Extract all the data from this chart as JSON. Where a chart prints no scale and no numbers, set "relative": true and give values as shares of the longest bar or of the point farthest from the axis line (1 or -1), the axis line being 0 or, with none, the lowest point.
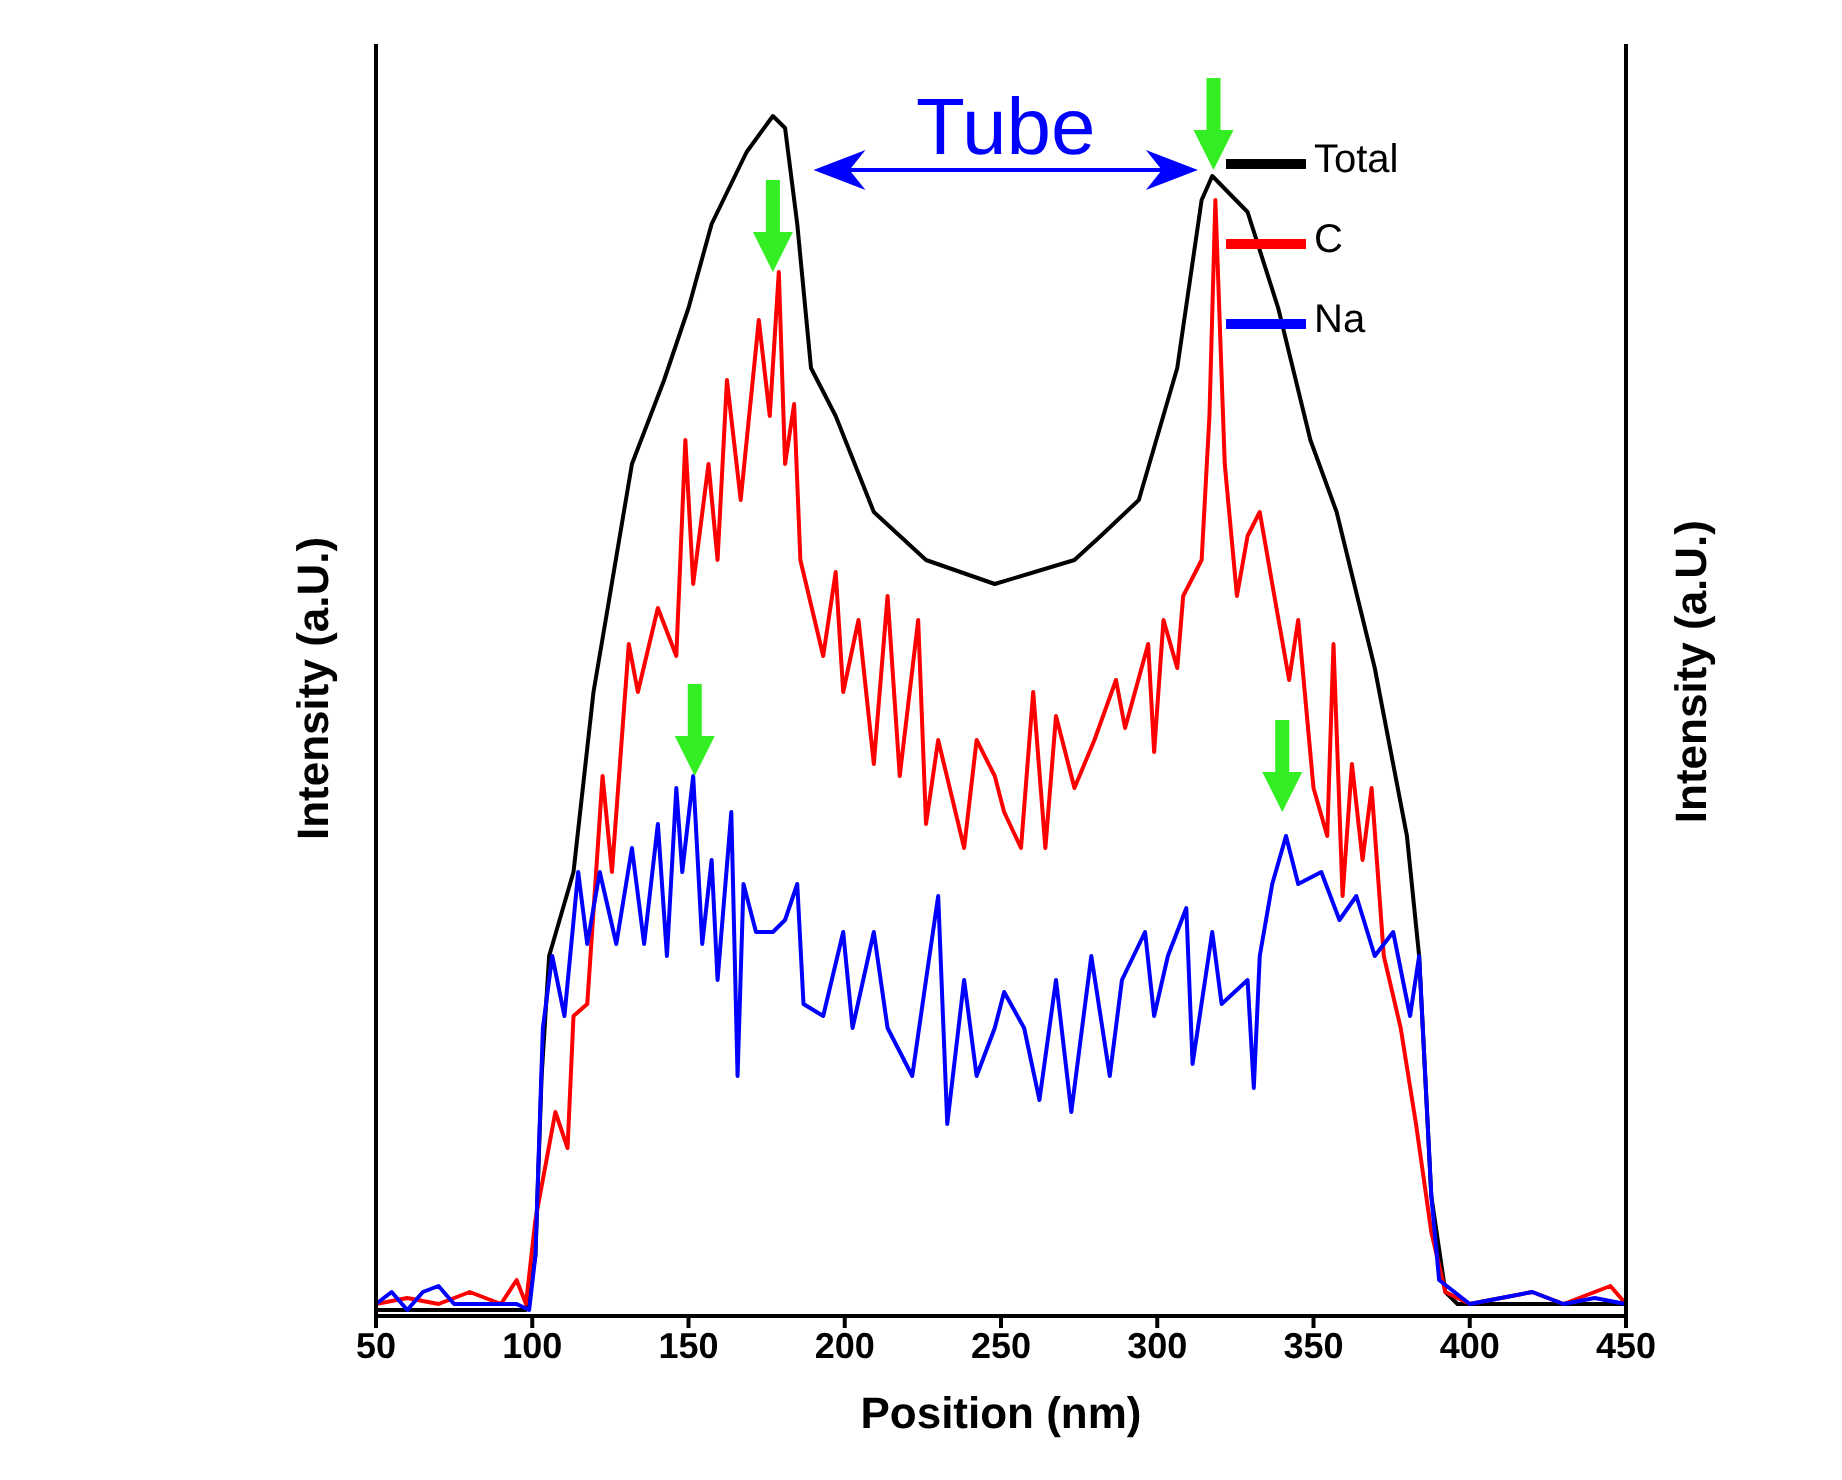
{
  "chart_data": {
    "type": "line",
    "relative": true,
    "xlabel": "Position (nm)",
    "ylabel": "Intensity (a.U.)",
    "y2label": "Intensity (a.U.)",
    "xlim": [
      50,
      450
    ],
    "xticks": [
      50,
      100,
      150,
      200,
      250,
      300,
      350,
      400,
      450
    ],
    "legend": "top right",
    "annotations": [
      "Tube"
    ],
    "series": [
      {
        "name": "Total",
        "color": "#000000",
        "x": [
          50,
          70,
          90,
          98,
          101,
          103,
          105.4,
          113.2,
          119.6,
          123.5,
          131.9,
          142.2,
          150,
          157.4,
          168.6,
          177,
          180.9,
          184.8,
          189.2,
          197.1,
          209.3,
          226,
          248,
          273.5,
          281.9,
          294.1,
          306.4,
          314.2,
          317.6,
          328.9,
          338.7,
          349,
          357.4,
          369.6,
          379.9,
          383.8,
          387.7,
          392.2,
          396.1,
          420,
          450
        ],
        "values": [
          0.005,
          0.005,
          0.005,
          0.005,
          0.05,
          0.2,
          0.3,
          0.37,
          0.52,
          0.58,
          0.71,
          0.78,
          0.84,
          0.91,
          0.97,
          1.0,
          0.99,
          0.91,
          0.79,
          0.75,
          0.67,
          0.63,
          0.61,
          0.63,
          0.65,
          0.68,
          0.79,
          0.93,
          0.95,
          0.92,
          0.84,
          0.73,
          0.67,
          0.54,
          0.4,
          0.3,
          0.1,
          0.02,
          0.01,
          0.01,
          0.01
        ]
      },
      {
        "name": "C",
        "color": "#ff0000",
        "x": [
          50,
          60,
          70,
          80,
          90,
          95,
          98,
          101,
          107.4,
          111.3,
          113.2,
          117.6,
          122.5,
          125.5,
          130.9,
          133.8,
          140.2,
          146.1,
          149,
          151.5,
          156.4,
          159.3,
          162.3,
          166.7,
          172.5,
          176,
          178.9,
          180.9,
          183.8,
          185.8,
          193.1,
          197.1,
          199.5,
          204.4,
          209.3,
          213.7,
          217.6,
          223.5,
          226,
          229.9,
          238.2,
          242.2,
          248,
          251,
          256.4,
          260.3,
          264.2,
          267.6,
          273.5,
          279.9,
          286.8,
          289.7,
          297.1,
          299,
          302,
          306.4,
          308.3,
          314.2,
          316.7,
          318.6,
          321.6,
          325.5,
          328.9,
          332.8,
          336.8,
          342.2,
          345.1,
          350,
          354.4,
          356.4,
          359.3,
          362.3,
          365.7,
          368.6,
          372.5,
          377.9,
          382.8,
          387.7,
          392.2,
          400,
          420,
          430,
          445,
          450
        ],
        "values": [
          0.01,
          0.015,
          0.01,
          0.02,
          0.01,
          0.03,
          0.01,
          0.08,
          0.17,
          0.14,
          0.25,
          0.26,
          0.45,
          0.37,
          0.56,
          0.52,
          0.59,
          0.55,
          0.73,
          0.61,
          0.71,
          0.63,
          0.78,
          0.68,
          0.83,
          0.75,
          0.87,
          0.71,
          0.76,
          0.63,
          0.55,
          0.62,
          0.52,
          0.58,
          0.46,
          0.6,
          0.45,
          0.58,
          0.41,
          0.48,
          0.39,
          0.48,
          0.45,
          0.42,
          0.39,
          0.52,
          0.39,
          0.5,
          0.44,
          0.48,
          0.53,
          0.49,
          0.56,
          0.47,
          0.58,
          0.54,
          0.6,
          0.63,
          0.75,
          0.93,
          0.71,
          0.6,
          0.65,
          0.67,
          0.61,
          0.53,
          0.58,
          0.44,
          0.4,
          0.56,
          0.35,
          0.46,
          0.38,
          0.44,
          0.3,
          0.24,
          0.16,
          0.07,
          0.02,
          0.01,
          0.02,
          0.01,
          0.025,
          0.01
        ]
      },
      {
        "name": "Na",
        "color": "#0000ff",
        "x": [
          50,
          55,
          60,
          65,
          70,
          75,
          85,
          95,
          99,
          101,
          103.4,
          106.4,
          110.3,
          114.7,
          117.6,
          121.6,
          126.9,
          131.9,
          135.8,
          140.2,
          143.1,
          146.1,
          148,
          151.5,
          154.4,
          157.4,
          159.3,
          163.7,
          165.7,
          167.6,
          171.6,
          177,
          180.9,
          184.8,
          186.8,
          193.1,
          199.5,
          202.5,
          209.3,
          213.7,
          221.6,
          226,
          229.9,
          232.8,
          238.2,
          242.2,
          248,
          251,
          257.4,
          262.3,
          267.6,
          272.5,
          278.9,
          284.8,
          288.7,
          296.1,
          299,
          303.4,
          309.3,
          311.3,
          317.6,
          320.6,
          328.9,
          330.9,
          332.8,
          336.8,
          341.2,
          345.1,
          352.5,
          358.3,
          363.7,
          369.6,
          375.5,
          380.9,
          383.8,
          387.7,
          390.2,
          400,
          410,
          420,
          430,
          440,
          450
        ],
        "values": [
          0.01,
          0.02,
          0.005,
          0.02,
          0.025,
          0.01,
          0.01,
          0.01,
          0.005,
          0.05,
          0.24,
          0.3,
          0.25,
          0.37,
          0.31,
          0.37,
          0.31,
          0.39,
          0.31,
          0.41,
          0.3,
          0.44,
          0.37,
          0.45,
          0.31,
          0.38,
          0.28,
          0.42,
          0.2,
          0.36,
          0.32,
          0.32,
          0.33,
          0.36,
          0.26,
          0.25,
          0.32,
          0.24,
          0.32,
          0.24,
          0.2,
          0.28,
          0.35,
          0.16,
          0.28,
          0.2,
          0.24,
          0.27,
          0.24,
          0.18,
          0.28,
          0.17,
          0.3,
          0.2,
          0.28,
          0.32,
          0.25,
          0.3,
          0.34,
          0.21,
          0.32,
          0.26,
          0.28,
          0.19,
          0.3,
          0.36,
          0.4,
          0.36,
          0.37,
          0.33,
          0.35,
          0.3,
          0.32,
          0.25,
          0.3,
          0.1,
          0.03,
          0.01,
          0.015,
          0.02,
          0.01,
          0.015,
          0.01
        ]
      }
    ]
  }
}
